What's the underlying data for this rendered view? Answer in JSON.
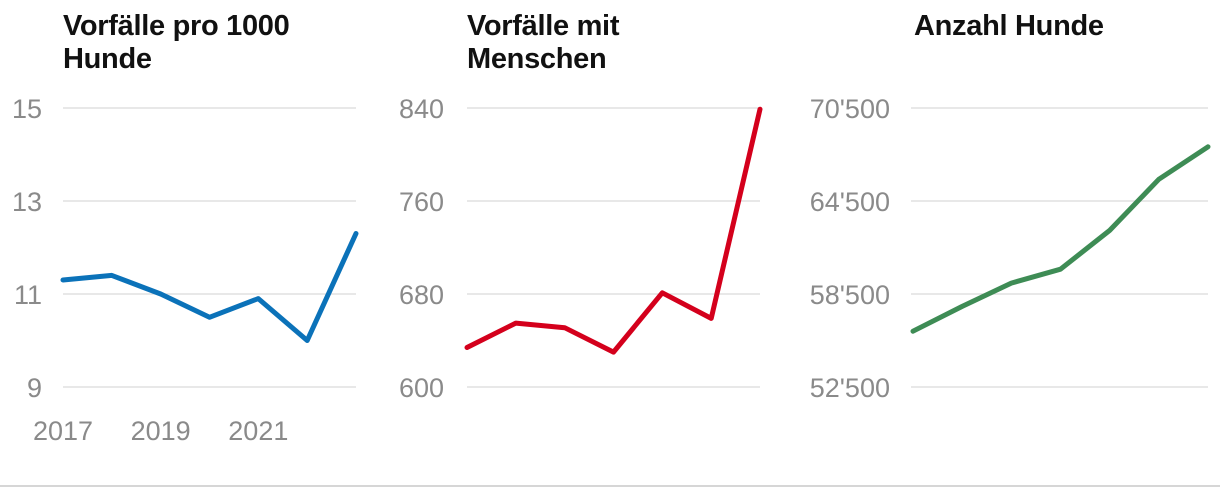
{
  "chart_data": [
    {
      "type": "line",
      "title": "Vorfälle pro 1000 Hunde",
      "x": [
        2017,
        2018,
        2019,
        2020,
        2021,
        2022,
        2023
      ],
      "x_tick_labels": [
        "2017",
        "2019",
        "2021"
      ],
      "y_tick_labels": [
        "15",
        "13",
        "11",
        "9"
      ],
      "ylim": [
        9,
        15
      ],
      "series": [
        {
          "values": [
            11.3,
            11.4,
            11.0,
            10.5,
            10.9,
            10.0,
            12.3
          ],
          "color": "#0b72b9"
        }
      ],
      "grid": true
    },
    {
      "type": "line",
      "title": "Vorfälle mit Menschen",
      "x": [
        2017,
        2018,
        2019,
        2020,
        2021,
        2022,
        2023
      ],
      "y_tick_labels": [
        "840",
        "760",
        "680",
        "600"
      ],
      "ylim": [
        600,
        840
      ],
      "series": [
        {
          "values": [
            634,
            655,
            651,
            630,
            681,
            659,
            839
          ],
          "color": "#d4001c"
        }
      ],
      "grid": true
    },
    {
      "type": "line",
      "title": "Anzahl Hunde",
      "x": [
        2017,
        2018,
        2019,
        2020,
        2021,
        2022,
        2023
      ],
      "y_tick_labels": [
        "70'500",
        "64'500",
        "58'500",
        "52'500"
      ],
      "ylim": [
        52500,
        70500
      ],
      "series": [
        {
          "values": [
            56100,
            57700,
            59200,
            60100,
            62600,
            65900,
            68000
          ],
          "color": "#3e8c55"
        }
      ],
      "grid": true
    }
  ]
}
